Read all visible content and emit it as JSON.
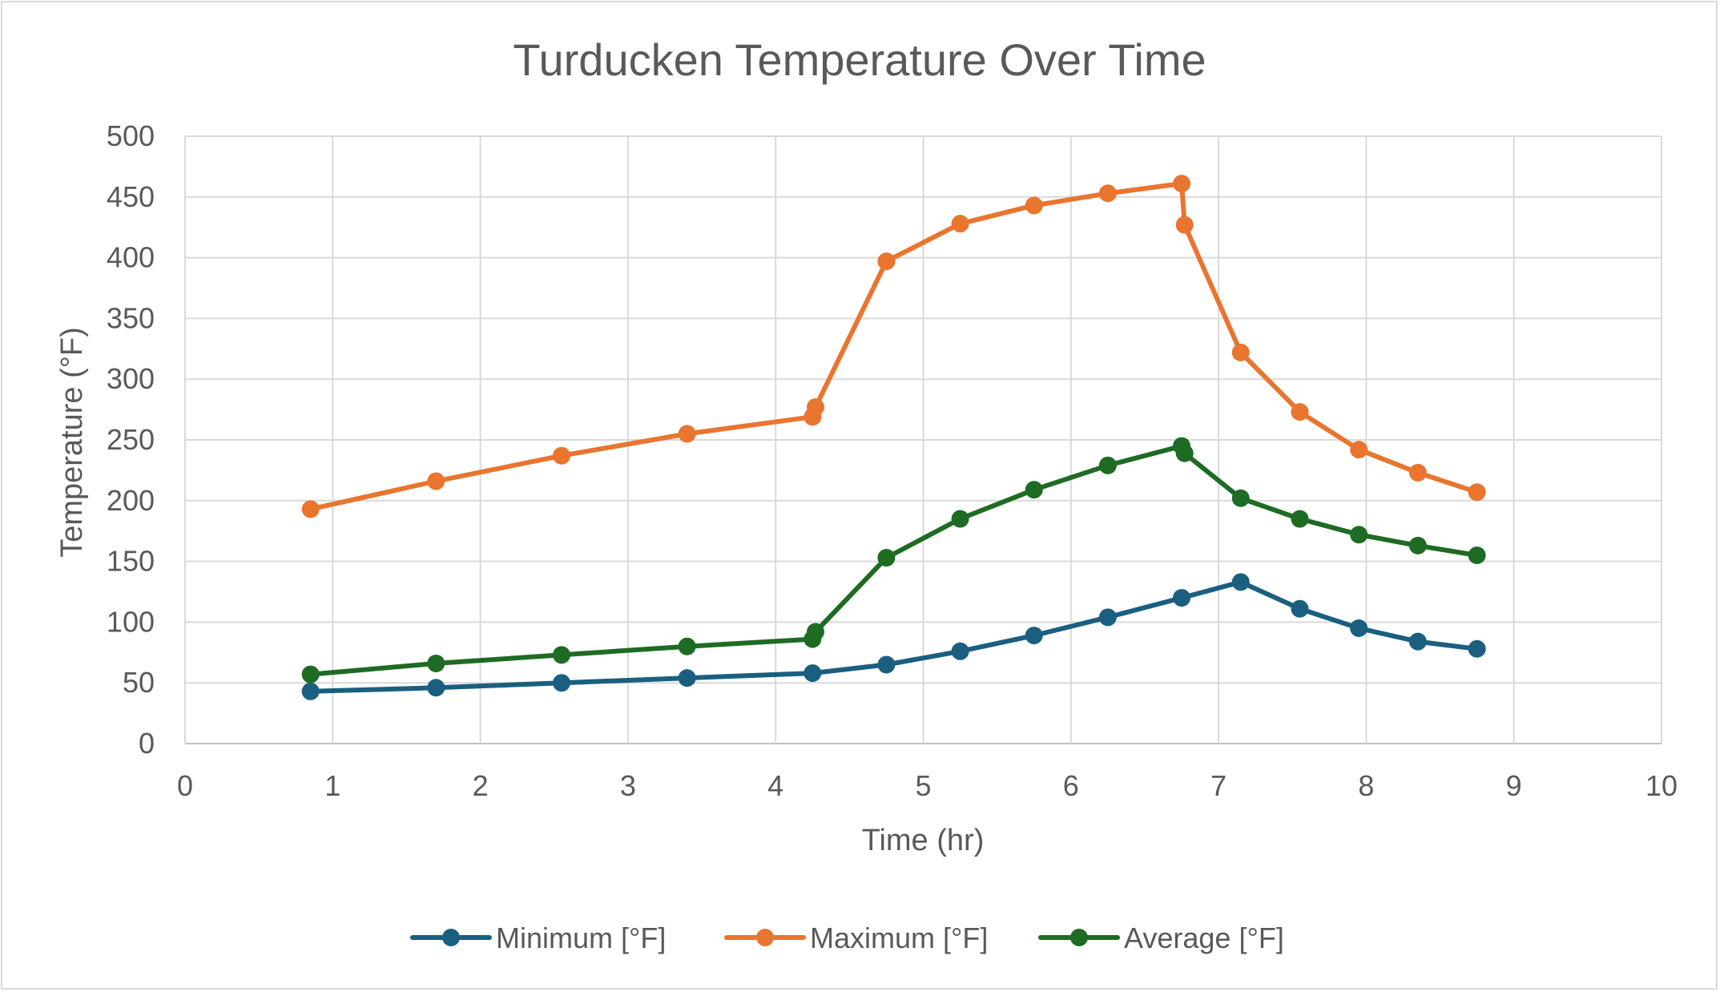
{
  "chart_data": {
    "type": "scatter",
    "title": "Turducken Temperature Over Time",
    "xlabel": "Time (hr)",
    "ylabel": "Temperature (°F)",
    "xlim": [
      0,
      10
    ],
    "ylim": [
      0,
      500
    ],
    "x_ticks": [
      0,
      1,
      2,
      3,
      4,
      5,
      6,
      7,
      8,
      9,
      10
    ],
    "y_ticks": [
      0,
      50,
      100,
      150,
      200,
      250,
      300,
      350,
      400,
      450,
      500
    ],
    "grid": true,
    "legend_position": "bottom",
    "series": [
      {
        "name": "Minimum [°F]",
        "color": "#1a5f80",
        "x": [
          0.85,
          1.7,
          2.55,
          3.4,
          4.25,
          4.75,
          5.25,
          5.75,
          6.25,
          6.75,
          7.15,
          7.55,
          7.95,
          8.35,
          8.75
        ],
        "y": [
          43,
          46,
          50,
          54,
          58,
          65,
          76,
          89,
          104,
          120,
          133,
          111,
          95,
          84,
          78
        ]
      },
      {
        "name": "Maximum [°F]",
        "color": "#e9752f",
        "x": [
          0.85,
          1.7,
          2.55,
          3.4,
          4.25,
          4.27,
          4.75,
          5.25,
          5.75,
          6.25,
          6.75,
          6.77,
          7.15,
          7.55,
          7.95,
          8.35,
          8.75
        ],
        "y": [
          193,
          216,
          237,
          255,
          269,
          277,
          397,
          428,
          443,
          453,
          461,
          427,
          322,
          273,
          242,
          223,
          207
        ]
      },
      {
        "name": "Average [°F]",
        "color": "#1e6b24",
        "x": [
          0.85,
          1.7,
          2.55,
          3.4,
          4.25,
          4.27,
          4.75,
          5.25,
          5.75,
          6.25,
          6.75,
          6.77,
          7.15,
          7.55,
          7.95,
          8.35,
          8.75
        ],
        "y": [
          57,
          66,
          73,
          80,
          86,
          92,
          153,
          185,
          209,
          229,
          245,
          239,
          202,
          185,
          172,
          163,
          155
        ]
      }
    ]
  }
}
